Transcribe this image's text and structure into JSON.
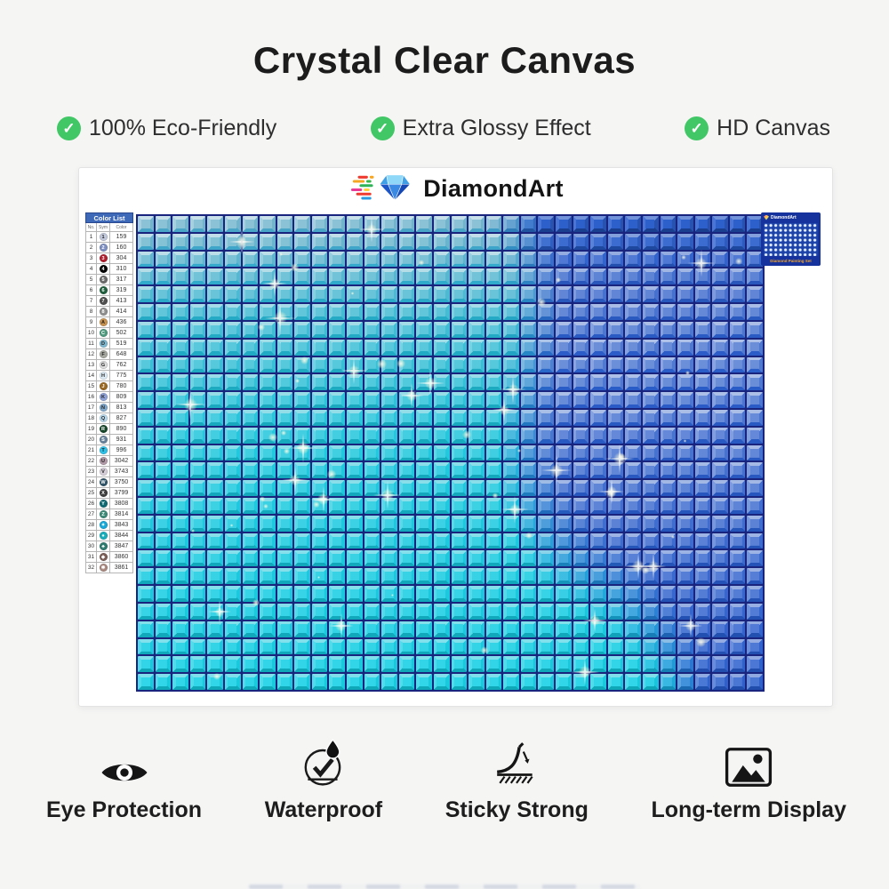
{
  "title": "Crystal Clear Canvas",
  "features": [
    {
      "label": "100% Eco-Friendly"
    },
    {
      "label": "Extra Glossy Effect"
    },
    {
      "label": "HD Canvas"
    }
  ],
  "brand": {
    "name": "DiamondArt"
  },
  "color_list": {
    "title": "Color List",
    "headers": [
      "No.",
      "Sym",
      "Color"
    ],
    "rows": [
      {
        "no": "1",
        "symbol": "1",
        "code": "159",
        "color": "#c3c9dc"
      },
      {
        "no": "2",
        "symbol": "2",
        "code": "160",
        "color": "#7d8fc1"
      },
      {
        "no": "3",
        "symbol": "3",
        "code": "304",
        "color": "#b01f2e"
      },
      {
        "no": "4",
        "symbol": "4",
        "code": "310",
        "color": "#000000"
      },
      {
        "no": "5",
        "symbol": "5",
        "code": "317",
        "color": "#6b6b6b"
      },
      {
        "no": "6",
        "symbol": "6",
        "code": "319",
        "color": "#20603f"
      },
      {
        "no": "7",
        "symbol": "7",
        "code": "413",
        "color": "#4f4f4f"
      },
      {
        "no": "8",
        "symbol": "8",
        "code": "414",
        "color": "#8f8f8f"
      },
      {
        "no": "9",
        "symbol": "A",
        "code": "436",
        "color": "#c8924f"
      },
      {
        "no": "10",
        "symbol": "C",
        "code": "502",
        "color": "#4f9a7e"
      },
      {
        "no": "11",
        "symbol": "D",
        "code": "519",
        "color": "#7fb8d0"
      },
      {
        "no": "12",
        "symbol": "F",
        "code": "648",
        "color": "#a5a79e"
      },
      {
        "no": "13",
        "symbol": "G",
        "code": "762",
        "color": "#dcdcdc"
      },
      {
        "no": "14",
        "symbol": "H",
        "code": "775",
        "color": "#dcebf5"
      },
      {
        "no": "15",
        "symbol": "J",
        "code": "780",
        "color": "#9a6a24"
      },
      {
        "no": "16",
        "symbol": "K",
        "code": "809",
        "color": "#8fa3d8"
      },
      {
        "no": "17",
        "symbol": "N",
        "code": "813",
        "color": "#7fa8cc"
      },
      {
        "no": "18",
        "symbol": "Q",
        "code": "827",
        "color": "#b8d8ec"
      },
      {
        "no": "19",
        "symbol": "R",
        "code": "890",
        "color": "#17472b"
      },
      {
        "no": "20",
        "symbol": "S",
        "code": "931",
        "color": "#68829b"
      },
      {
        "no": "21",
        "symbol": "T",
        "code": "996",
        "color": "#2fc0e8"
      },
      {
        "no": "22",
        "symbol": "U",
        "code": "3042",
        "color": "#b29aa8"
      },
      {
        "no": "23",
        "symbol": "V",
        "code": "3743",
        "color": "#d5cdd8"
      },
      {
        "no": "24",
        "symbol": "W",
        "code": "3750",
        "color": "#2f5468"
      },
      {
        "no": "25",
        "symbol": "X",
        "code": "3799",
        "color": "#3f3f3f"
      },
      {
        "no": "26",
        "symbol": "Y",
        "code": "3808",
        "color": "#0f6a74"
      },
      {
        "no": "27",
        "symbol": "Z",
        "code": "3814",
        "color": "#3d8a78"
      },
      {
        "no": "28",
        "symbol": "✦",
        "code": "3843",
        "color": "#16a8d8"
      },
      {
        "no": "29",
        "symbol": "●",
        "code": "3844",
        "color": "#18aebc"
      },
      {
        "no": "30",
        "symbol": "♣",
        "code": "3847",
        "color": "#2f7a6e"
      },
      {
        "no": "31",
        "symbol": "◆",
        "code": "3860",
        "color": "#7a5f58"
      },
      {
        "no": "32",
        "symbol": "✱",
        "code": "3861",
        "color": "#a8887f"
      }
    ]
  },
  "canvas_grid": {
    "cols": 36,
    "rows": 27,
    "gap_color": "#18247e",
    "cyan_side": "#3fc9dd",
    "blue_side": "#4a7fd4",
    "sparkle_count": 64
  },
  "thumbnail": {
    "brand": "DiamondArt",
    "caption": "Diamond Painting Set"
  },
  "bottom_features": [
    {
      "label": "Eye Protection",
      "icon": "eye-icon"
    },
    {
      "label": "Waterproof",
      "icon": "waterproof-icon"
    },
    {
      "label": "Sticky Strong",
      "icon": "sticky-strong-icon"
    },
    {
      "label": "Long-term Display",
      "icon": "long-term-display-icon"
    }
  ],
  "colors": {
    "check_green": "#42c767",
    "card_bg": "#ffffff",
    "page_bg": "#f5f5f4"
  }
}
